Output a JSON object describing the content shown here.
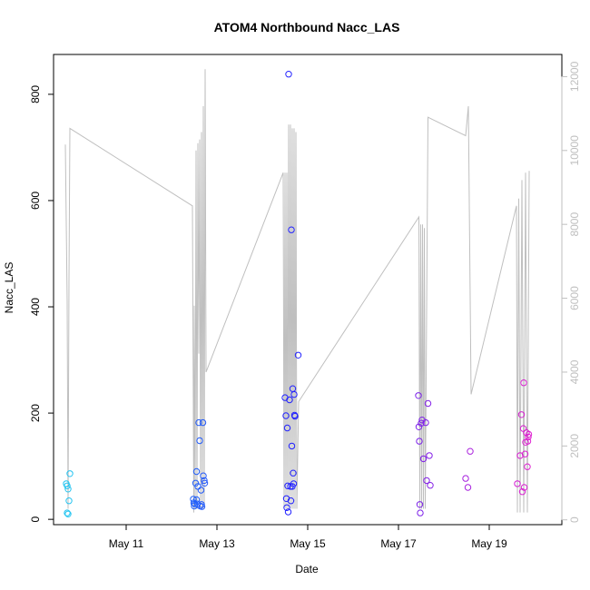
{
  "chart_data": {
    "type": "scatter",
    "title": "ATOM4 Northbound Nacc_LAS",
    "xlabel": "Date",
    "ylabel": "Nacc_LAS",
    "x_unit": "days in May",
    "xlim": [
      9.4,
      20.6
    ],
    "ylim": [
      -10,
      875
    ],
    "y2lim": [
      -130,
      12600
    ],
    "x_ticks": [
      {
        "value": 11,
        "label": "May 11"
      },
      {
        "value": 13,
        "label": "May 13"
      },
      {
        "value": 15,
        "label": "May 15"
      },
      {
        "value": 17,
        "label": "May 17"
      },
      {
        "value": 19,
        "label": "May 19"
      }
    ],
    "y_ticks": [
      0,
      200,
      400,
      600,
      800
    ],
    "y2_ticks": [
      0,
      2000,
      4000,
      6000,
      8000,
      10000,
      12000
    ],
    "colors": {
      "start": "#22c8f0",
      "mid": "#2222ff",
      "end": "#e020d0",
      "secondary_line": "#bfbfbf",
      "axis": "#000000",
      "secondary_axis": "#bfbfbf"
    },
    "points": [
      [
        9.68,
        67
      ],
      [
        9.7,
        63
      ],
      [
        9.72,
        57
      ],
      [
        9.7,
        12
      ],
      [
        9.72,
        10
      ],
      [
        9.74,
        35
      ],
      [
        9.76,
        86
      ],
      [
        12.48,
        38
      ],
      [
        12.49,
        31
      ],
      [
        12.5,
        25
      ],
      [
        12.51,
        29
      ],
      [
        12.53,
        68
      ],
      [
        12.55,
        90
      ],
      [
        12.55,
        37
      ],
      [
        12.57,
        29
      ],
      [
        12.58,
        62
      ],
      [
        12.6,
        182
      ],
      [
        12.62,
        148
      ],
      [
        12.63,
        25
      ],
      [
        12.65,
        55
      ],
      [
        12.66,
        28
      ],
      [
        12.67,
        24
      ],
      [
        12.69,
        182
      ],
      [
        12.7,
        82
      ],
      [
        12.72,
        73
      ],
      [
        12.73,
        68
      ],
      [
        14.5,
        229
      ],
      [
        14.52,
        195
      ],
      [
        14.53,
        39
      ],
      [
        14.54,
        22
      ],
      [
        14.55,
        172
      ],
      [
        14.56,
        63
      ],
      [
        14.57,
        14
      ],
      [
        14.58,
        838
      ],
      [
        14.6,
        225
      ],
      [
        14.62,
        62
      ],
      [
        14.63,
        35
      ],
      [
        14.64,
        545
      ],
      [
        14.65,
        138
      ],
      [
        14.66,
        62
      ],
      [
        14.67,
        246
      ],
      [
        14.68,
        87
      ],
      [
        14.69,
        67
      ],
      [
        14.7,
        235
      ],
      [
        14.71,
        196
      ],
      [
        14.72,
        194
      ],
      [
        14.79,
        309
      ],
      [
        17.44,
        233
      ],
      [
        17.45,
        174
      ],
      [
        17.46,
        147
      ],
      [
        17.47,
        28
      ],
      [
        17.48,
        12
      ],
      [
        17.5,
        181
      ],
      [
        17.52,
        187
      ],
      [
        17.55,
        114
      ],
      [
        17.6,
        182
      ],
      [
        17.62,
        73
      ],
      [
        17.65,
        218
      ],
      [
        17.68,
        120
      ],
      [
        17.7,
        64
      ],
      [
        18.48,
        77
      ],
      [
        18.53,
        60
      ],
      [
        18.58,
        128
      ],
      [
        19.62,
        67
      ],
      [
        19.68,
        120
      ],
      [
        19.71,
        197
      ],
      [
        19.73,
        52
      ],
      [
        19.75,
        171
      ],
      [
        19.76,
        257
      ],
      [
        19.77,
        60
      ],
      [
        19.79,
        123
      ],
      [
        19.8,
        145
      ],
      [
        19.82,
        163
      ],
      [
        19.84,
        99
      ],
      [
        19.85,
        147
      ],
      [
        19.86,
        155
      ],
      [
        19.87,
        160
      ]
    ],
    "secondary_line": [
      [
        9.66,
        10160
      ],
      [
        9.7,
        5900
      ],
      [
        9.72,
        300
      ],
      [
        9.74,
        6500
      ],
      [
        9.76,
        10600
      ],
      [
        12.46,
        8500
      ],
      [
        12.49,
        200
      ],
      [
        12.5,
        5800
      ],
      [
        12.52,
        300
      ],
      [
        12.54,
        10000
      ],
      [
        12.56,
        300
      ],
      [
        12.58,
        10200
      ],
      [
        12.6,
        4500
      ],
      [
        12.62,
        10300
      ],
      [
        12.64,
        300
      ],
      [
        12.66,
        10500
      ],
      [
        12.68,
        300
      ],
      [
        12.7,
        11200
      ],
      [
        12.72,
        300
      ],
      [
        12.74,
        12200
      ],
      [
        12.76,
        4000
      ],
      [
        14.46,
        9400
      ],
      [
        14.48,
        300
      ],
      [
        14.5,
        9400
      ],
      [
        14.52,
        300
      ],
      [
        14.54,
        9400
      ],
      [
        14.56,
        300
      ],
      [
        14.58,
        10700
      ],
      [
        14.6,
        300
      ],
      [
        14.62,
        10700
      ],
      [
        14.64,
        300
      ],
      [
        14.66,
        10600
      ],
      [
        14.68,
        300
      ],
      [
        14.7,
        10600
      ],
      [
        14.72,
        300
      ],
      [
        14.74,
        10500
      ],
      [
        14.76,
        300
      ],
      [
        14.8,
        3200
      ],
      [
        17.45,
        8200
      ],
      [
        17.47,
        300
      ],
      [
        17.49,
        8000
      ],
      [
        17.51,
        300
      ],
      [
        17.53,
        8000
      ],
      [
        17.55,
        300
      ],
      [
        17.57,
        7900
      ],
      [
        17.59,
        300
      ],
      [
        17.65,
        10900
      ],
      [
        18.48,
        10400
      ],
      [
        18.54,
        11200
      ],
      [
        18.6,
        3400
      ],
      [
        19.6,
        8500
      ],
      [
        19.62,
        200
      ],
      [
        19.65,
        8700
      ],
      [
        19.68,
        200
      ],
      [
        19.72,
        9200
      ],
      [
        19.76,
        200
      ],
      [
        19.8,
        9400
      ],
      [
        19.84,
        200
      ],
      [
        19.88,
        9450
      ]
    ]
  }
}
